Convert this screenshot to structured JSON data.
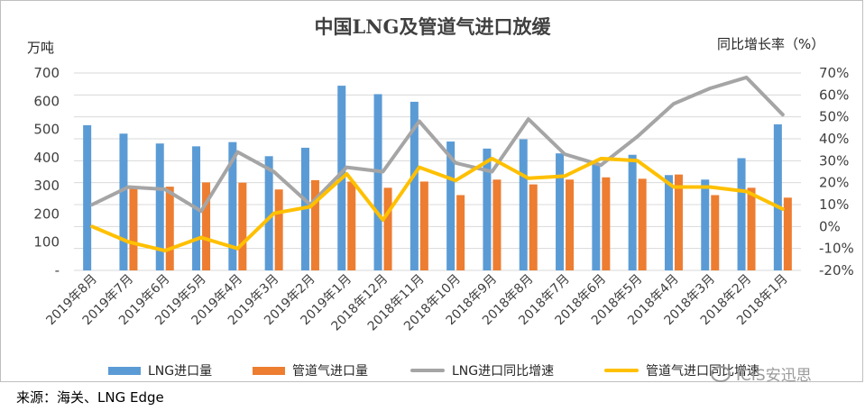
{
  "chart_data": {
    "type": "bar+line",
    "title": "中国LNG及管道气进口放缓",
    "left_axis_unit": "万吨",
    "right_axis_unit": "同比增长率（%）",
    "left_axis": {
      "min": 0,
      "max": 700,
      "step": 100,
      "tick_labels": [
        "-",
        "100",
        "200",
        "300",
        "400",
        "500",
        "600",
        "700"
      ]
    },
    "right_axis": {
      "min": -20,
      "max": 70,
      "step": 10,
      "tick_labels": [
        "-20%",
        "-10%",
        "0%",
        "10%",
        "20%",
        "30%",
        "40%",
        "50%",
        "60%",
        "70%"
      ]
    },
    "categories": [
      "2019年8月",
      "2019年7月",
      "2019年6月",
      "2019年5月",
      "2019年4月",
      "2019年3月",
      "2019年2月",
      "2019年1月",
      "2018年12月",
      "2018年11月",
      "2018年10月",
      "2018年9月",
      "2018年8月",
      "2018年7月",
      "2018年6月",
      "2018年5月",
      "2018年4月",
      "2018年3月",
      "2018年2月",
      "2018年1月"
    ],
    "series": [
      {
        "name": "LNG进口量",
        "kind": "bar",
        "axis": "left",
        "color": "#5b9bd5",
        "values": [
          515,
          485,
          450,
          440,
          455,
          405,
          435,
          655,
          625,
          598,
          457,
          432,
          465,
          415,
          380,
          410,
          338,
          322,
          398,
          518
        ]
      },
      {
        "name": "管道气进口量",
        "kind": "bar",
        "axis": "left",
        "color": "#ed7d31",
        "values": null,
        "values_by_index": [
          null,
          297,
          297,
          312,
          311,
          287,
          320,
          315,
          293,
          315,
          267,
          322,
          305,
          322,
          330,
          325,
          340,
          267,
          293,
          258
        ]
      },
      {
        "name": "LNG进口同比增速",
        "kind": "line",
        "axis": "right",
        "color": "#a5a5a5",
        "values": [
          10,
          18,
          17,
          7,
          34,
          25,
          10,
          27,
          25,
          48,
          29,
          25,
          49,
          33,
          28,
          41,
          56,
          63,
          68,
          51
        ]
      },
      {
        "name": "管道气进口同比增速",
        "kind": "line",
        "axis": "right",
        "color": "#ffc000",
        "values": [
          0,
          -7,
          -11,
          -5,
          -10,
          6,
          9,
          24,
          3,
          27,
          21,
          31,
          22,
          23,
          31,
          30,
          18,
          18,
          16,
          8
        ]
      }
    ],
    "grid": true,
    "legend_position": "bottom"
  },
  "legend": {
    "lng_volume": "LNG进口量",
    "pipe_volume": "管道气进口量",
    "lng_growth": "LNG进口同比增速",
    "pipe_growth": "管道气进口同比增速"
  },
  "source": "来源：海关、LNG Edge",
  "watermark": "ICIS安迅思",
  "colors": {
    "lng": "#5b9bd5",
    "pipe": "#ed7d31",
    "lng_growth": "#a5a5a5",
    "pipe_growth": "#ffc000",
    "grid": "#d9d9d9"
  }
}
